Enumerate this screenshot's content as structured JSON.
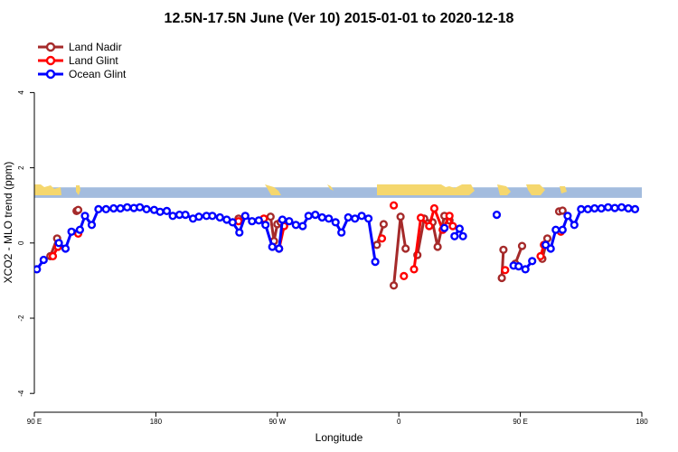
{
  "chart_data": {
    "type": "line",
    "title": "12.5N-17.5N June (Ver 10)   2015-01-01 to 2020-12-18",
    "xlabel": "Longitude",
    "ylabel": "XCO2 - MLO trend (ppm)",
    "xlim": [
      0,
      360
    ],
    "ylim": [
      -4.5,
      5.5
    ],
    "x_ticks": [
      {
        "value": 0,
        "label": "90 E"
      },
      {
        "value": 72,
        "label": "180"
      },
      {
        "value": 144,
        "label": "90 W"
      },
      {
        "value": 216,
        "label": "0"
      },
      {
        "value": 288,
        "label": "90 E"
      },
      {
        "value": 360,
        "label": "180"
      }
    ],
    "y_ticks": [
      -4,
      -2,
      0,
      2,
      4
    ],
    "land_band": {
      "y_bottom": 1.2,
      "y_top": 1.48
    },
    "legend_position": "top-left",
    "series": [
      {
        "name": "Land Nadir",
        "color": "#a52a2a",
        "points": [
          [
            9.5,
            -0.35
          ],
          [
            13.5,
            0.12
          ],
          [
            25,
            0.85
          ],
          [
            26,
            0.88
          ],
          [
            121,
            0.65
          ],
          [
            140,
            0.7
          ],
          [
            142,
            0.05
          ],
          [
            144,
            0.5
          ],
          [
            146,
            0.55
          ],
          [
            203,
            -0.05
          ],
          [
            207,
            0.5
          ],
          [
            213,
            -1.13
          ],
          [
            217,
            0.7
          ],
          [
            220,
            -0.15
          ],
          [
            227,
            -0.32
          ],
          [
            231,
            0.65
          ],
          [
            236,
            0.55
          ],
          [
            239,
            -0.1
          ],
          [
            243,
            0.72
          ],
          [
            246,
            0.6
          ],
          [
            277,
            -0.93
          ],
          [
            278,
            -0.18
          ],
          [
            285,
            -0.55
          ],
          [
            289,
            -0.08
          ],
          [
            301,
            -0.42
          ],
          [
            304,
            0.12
          ],
          [
            311,
            0.84
          ],
          [
            313,
            0.86
          ]
        ]
      },
      {
        "name": "Land Glint",
        "color": "#ff0000",
        "points": [
          [
            11,
            -0.35
          ],
          [
            14,
            -0.1
          ],
          [
            26,
            0.25
          ],
          [
            121,
            0.58
          ],
          [
            136,
            0.65
          ],
          [
            145,
            -0.15
          ],
          [
            148,
            0.45
          ],
          [
            206,
            0.12
          ],
          [
            213,
            1.0
          ],
          [
            219,
            -0.88
          ],
          [
            225,
            -0.7
          ],
          [
            229,
            0.67
          ],
          [
            234,
            0.45
          ],
          [
            237,
            0.92
          ],
          [
            242,
            0.35
          ],
          [
            246,
            0.72
          ],
          [
            248,
            0.45
          ],
          [
            279,
            -0.72
          ],
          [
            300,
            -0.35
          ],
          [
            302,
            -0.05
          ],
          [
            312,
            0.3
          ]
        ]
      },
      {
        "name": "Ocean Glint",
        "color": "#0000ff",
        "points": [
          [
            1.5,
            -0.7
          ],
          [
            5.5,
            -0.45
          ],
          [
            14.5,
            0.0
          ],
          [
            18.5,
            -0.15
          ],
          [
            22,
            0.3
          ],
          [
            27,
            0.35
          ],
          [
            30,
            0.72
          ],
          [
            34,
            0.48
          ],
          [
            38,
            0.9
          ],
          [
            42.5,
            0.9
          ],
          [
            47,
            0.92
          ],
          [
            51,
            0.92
          ],
          [
            55,
            0.95
          ],
          [
            59,
            0.93
          ],
          [
            62.5,
            0.95
          ],
          [
            66.5,
            0.9
          ],
          [
            71,
            0.88
          ],
          [
            74.5,
            0.83
          ],
          [
            78.5,
            0.85
          ],
          [
            82,
            0.72
          ],
          [
            86,
            0.75
          ],
          [
            89.5,
            0.75
          ],
          [
            94,
            0.65
          ],
          [
            97.5,
            0.7
          ],
          [
            102,
            0.72
          ],
          [
            105.5,
            0.72
          ],
          [
            110,
            0.68
          ],
          [
            114,
            0.62
          ],
          [
            117.5,
            0.55
          ],
          [
            121.5,
            0.28
          ],
          [
            125,
            0.72
          ],
          [
            129,
            0.58
          ],
          [
            133,
            0.6
          ],
          [
            137,
            0.48
          ],
          [
            141,
            -0.1
          ],
          [
            145,
            -0.15
          ],
          [
            147,
            0.62
          ],
          [
            151,
            0.58
          ],
          [
            155,
            0.48
          ],
          [
            159,
            0.45
          ],
          [
            162.5,
            0.72
          ],
          [
            166.5,
            0.75
          ],
          [
            170.5,
            0.68
          ],
          [
            174.5,
            0.65
          ],
          [
            178.5,
            0.55
          ],
          [
            182,
            0.28
          ],
          [
            186,
            0.68
          ],
          [
            190,
            0.65
          ],
          [
            194,
            0.72
          ],
          [
            198,
            0.65
          ],
          [
            202,
            -0.5
          ],
          [
            243,
            0.4
          ],
          [
            249,
            0.18
          ],
          [
            252,
            0.38
          ],
          [
            254,
            0.18
          ],
          [
            274,
            0.75
          ],
          [
            284,
            -0.6
          ],
          [
            287,
            -0.62
          ],
          [
            291,
            -0.7
          ],
          [
            295,
            -0.48
          ],
          [
            303,
            -0.05
          ],
          [
            306,
            -0.15
          ],
          [
            309,
            0.35
          ],
          [
            313,
            0.35
          ],
          [
            316,
            0.72
          ],
          [
            320,
            0.48
          ],
          [
            324,
            0.9
          ],
          [
            328,
            0.9
          ],
          [
            332,
            0.92
          ],
          [
            336,
            0.92
          ],
          [
            340,
            0.95
          ],
          [
            344,
            0.93
          ],
          [
            348,
            0.95
          ],
          [
            352,
            0.92
          ],
          [
            356,
            0.9
          ]
        ]
      }
    ]
  }
}
